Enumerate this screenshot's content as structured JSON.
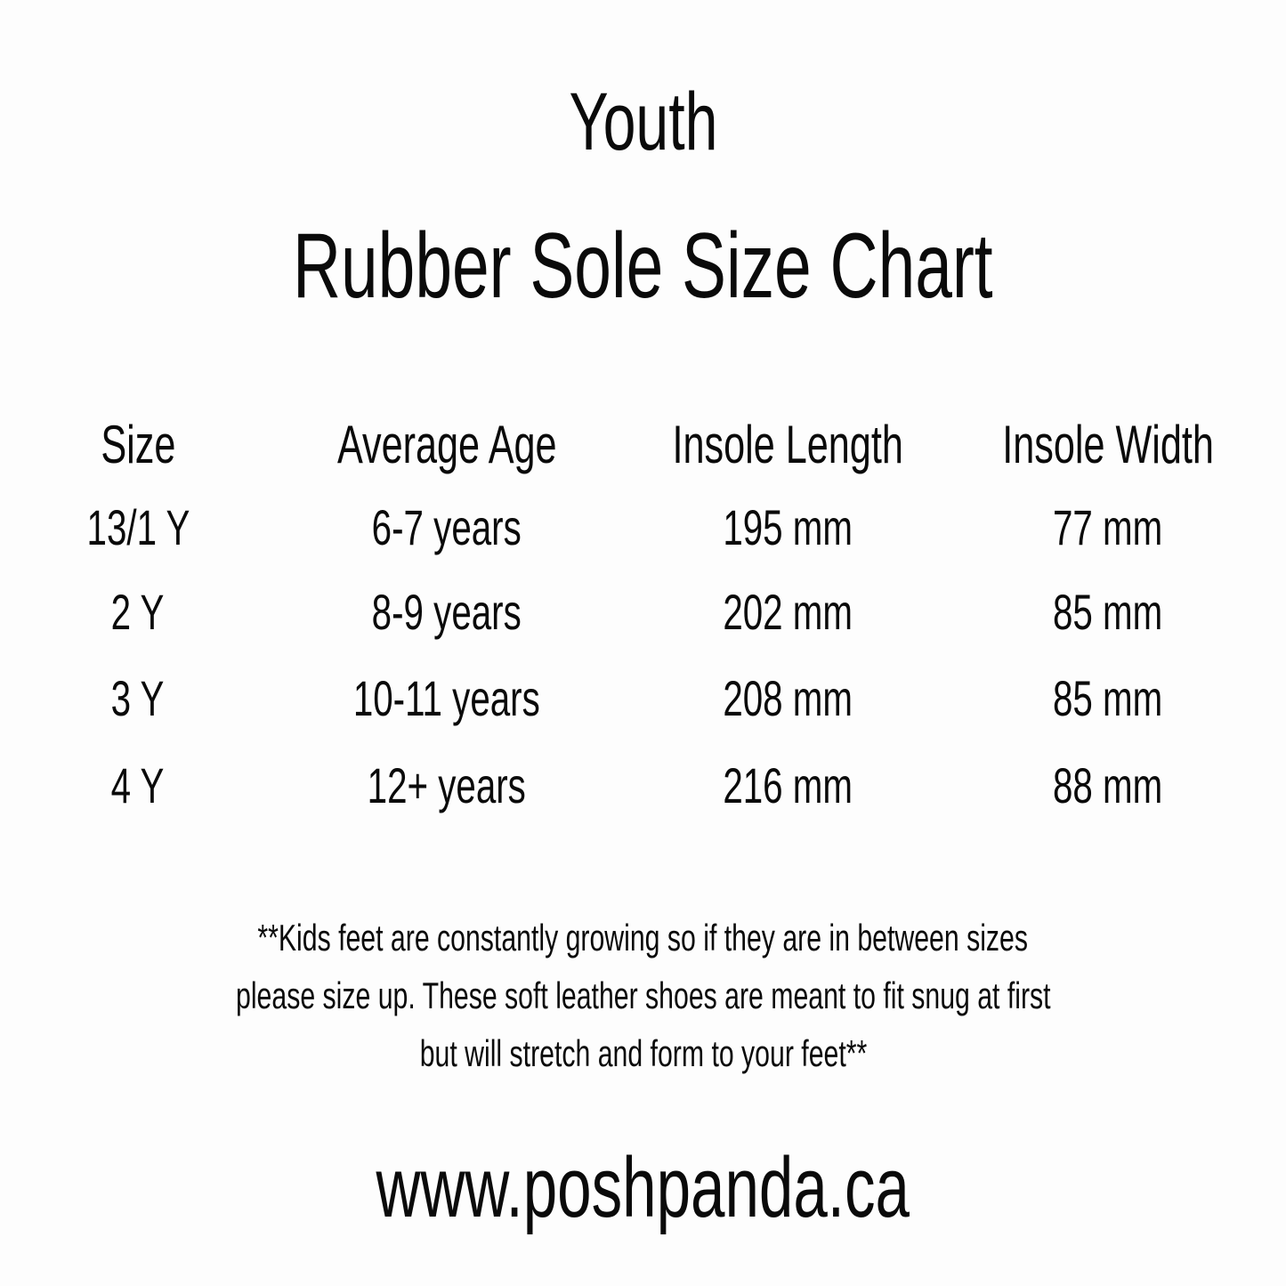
{
  "title": "Youth",
  "subtitle": "Rubber Sole Size Chart",
  "table": {
    "headers": [
      "Size",
      "Average Age",
      "Insole Length",
      "Insole Width"
    ],
    "rows": [
      [
        "13/1 Y",
        "6-7 years",
        "195 mm",
        "77 mm"
      ],
      [
        "2 Y",
        "8-9 years",
        "202 mm",
        "85 mm"
      ],
      [
        "3 Y",
        "10-11 years",
        "208 mm",
        "85 mm"
      ],
      [
        "4 Y",
        "12+ years",
        "216 mm",
        "88 mm"
      ]
    ]
  },
  "note": [
    "**Kids feet are constantly growing so if they are in between sizes",
    "please size up. These soft leather shoes are meant to fit snug at first",
    "but will stretch and form to your feet**"
  ],
  "website": "www.poshpanda.ca"
}
